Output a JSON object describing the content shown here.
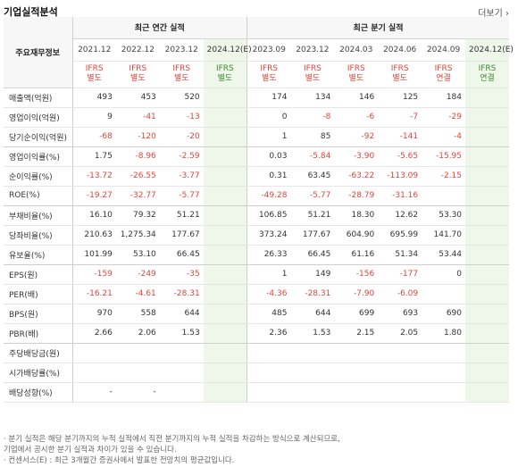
{
  "title": "기업실적분석",
  "more_label": "더보기",
  "row_header": "주요재무정보",
  "groups": {
    "annual": "최근 연간 실적",
    "quarter": "최근 분기 실적"
  },
  "periods": [
    "2021.12",
    "2022.12",
    "2023.12",
    "2024.12(E)",
    "2023.09",
    "2023.12",
    "2024.03",
    "2024.06",
    "2024.09",
    "2024.12(E)"
  ],
  "standards": [
    {
      "l1": "IFRS",
      "l2": "별도"
    },
    {
      "l1": "IFRS",
      "l2": "별도"
    },
    {
      "l1": "IFRS",
      "l2": "별도"
    },
    {
      "l1": "IFRS",
      "l2": "별도"
    },
    {
      "l1": "IFRS",
      "l2": "별도"
    },
    {
      "l1": "IFRS",
      "l2": "별도"
    },
    {
      "l1": "IFRS",
      "l2": "별도"
    },
    {
      "l1": "IFRS",
      "l2": "별도"
    },
    {
      "l1": "IFRS",
      "l2": "연결"
    },
    {
      "l1": "IFRS",
      "l2": "연결"
    }
  ],
  "rows": [
    {
      "label": "매출액(억원)",
      "values": [
        "493",
        "453",
        "520",
        "",
        "174",
        "134",
        "146",
        "125",
        "184",
        ""
      ]
    },
    {
      "label": "영업이익(억원)",
      "values": [
        "9",
        "-41",
        "-13",
        "",
        "0",
        "-8",
        "-6",
        "-7",
        "-29",
        ""
      ]
    },
    {
      "label": "당기순이익(억원)",
      "values": [
        "-68",
        "-120",
        "-20",
        "",
        "1",
        "85",
        "-92",
        "-141",
        "-4",
        ""
      ]
    },
    {
      "label": "영업이익률(%)",
      "values": [
        "1.75",
        "-8.96",
        "-2.59",
        "",
        "0.03",
        "-5.84",
        "-3.90",
        "-5.65",
        "-15.95",
        ""
      ]
    },
    {
      "label": "순이익률(%)",
      "values": [
        "-13.72",
        "-26.55",
        "-3.77",
        "",
        "0.31",
        "63.45",
        "-63.22",
        "-113.09",
        "-2.15",
        ""
      ]
    },
    {
      "label": "ROE(%)",
      "values": [
        "-19.27",
        "-32.77",
        "-5.77",
        "",
        "-49.28",
        "-5.77",
        "-28.79",
        "-31.16",
        "",
        ""
      ]
    },
    {
      "label": "부채비율(%)",
      "values": [
        "16.10",
        "79.32",
        "51.21",
        "",
        "106.85",
        "51.21",
        "18.30",
        "12.62",
        "53.30",
        ""
      ]
    },
    {
      "label": "당좌비율(%)",
      "values": [
        "210.63",
        "1,275.34",
        "177.67",
        "",
        "373.24",
        "177.67",
        "604.90",
        "695.99",
        "141.70",
        ""
      ]
    },
    {
      "label": "유보율(%)",
      "values": [
        "101.99",
        "53.10",
        "66.45",
        "",
        "26.33",
        "66.45",
        "61.16",
        "51.34",
        "53.44",
        ""
      ]
    },
    {
      "label": "EPS(원)",
      "values": [
        "-159",
        "-249",
        "-35",
        "",
        "1",
        "149",
        "-156",
        "-177",
        "0",
        ""
      ]
    },
    {
      "label": "PER(배)",
      "values": [
        "-16.21",
        "-4.61",
        "-28.31",
        "",
        "-4.36",
        "-28.31",
        "-7.90",
        "-6.09",
        "",
        ""
      ]
    },
    {
      "label": "BPS(원)",
      "values": [
        "970",
        "558",
        "644",
        "",
        "485",
        "644",
        "699",
        "693",
        "690",
        ""
      ]
    },
    {
      "label": "PBR(배)",
      "values": [
        "2.66",
        "2.06",
        "1.53",
        "",
        "2.36",
        "1.53",
        "2.15",
        "2.05",
        "1.80",
        ""
      ]
    },
    {
      "label": "주당배당금(원)",
      "values": [
        "",
        "",
        "",
        "",
        "",
        "",
        "",
        "",
        "",
        ""
      ]
    },
    {
      "label": "시가배당률(%)",
      "values": [
        "",
        "",
        "",
        "",
        "",
        "",
        "",
        "",
        "",
        ""
      ]
    },
    {
      "label": "배당성향(%)",
      "values": [
        "-",
        "-",
        "",
        "",
        "",
        "",
        "",
        "",
        "",
        ""
      ]
    }
  ],
  "notes": [
    "· 분기 실적은 해당 분기까지의 누적 실적에서 직전 분기까지의 누적 실적을 차감하는 방식으로 계산되므로,",
    "  기업에서 공시한 분기 실적과 차이가 있을 수 있습니다.",
    "· 컨센서스(E) : 최근 3개월간 증권사에서 발표한 전망치의 평균값입니다."
  ],
  "colors": {
    "negative": "#e0453a",
    "estimate_bg": "#eef7ea",
    "estimate_text": "#3c8a2e"
  }
}
